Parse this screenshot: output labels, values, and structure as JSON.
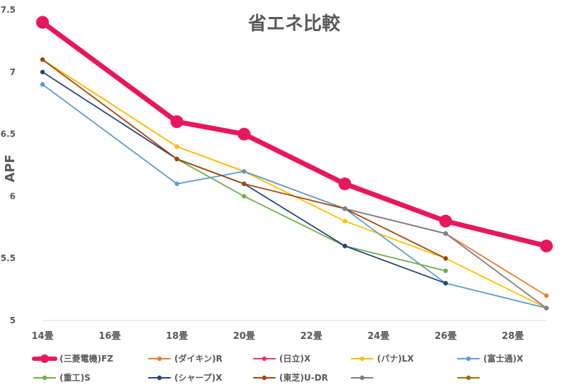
{
  "chart_data": {
    "type": "line",
    "title": "省エネ比較",
    "ylabel": "APF",
    "xlabel": "",
    "x_ticks": [
      "14畳",
      "16畳",
      "18畳",
      "20畳",
      "22畳",
      "24畳",
      "26畳",
      "28畳"
    ],
    "x_range": [
      14,
      29
    ],
    "y_range": [
      5,
      7.5
    ],
    "y_ticks": [
      "5",
      "5.5",
      "6",
      "6.5",
      "7",
      "7.5"
    ],
    "grid": false,
    "legend_position": "bottom",
    "series": [
      {
        "name": "(三菱電機)FZ",
        "color": "#E8175D",
        "emphasis": true,
        "points": [
          [
            14,
            7.4
          ],
          [
            18,
            6.6
          ],
          [
            20,
            6.5
          ],
          [
            23,
            6.1
          ],
          [
            26,
            5.8
          ],
          [
            29,
            5.6
          ]
        ]
      },
      {
        "name": "(ダイキン)R",
        "color": "#ED7D31",
        "points": [
          [
            14,
            7.1
          ],
          [
            18,
            6.4
          ],
          [
            20,
            6.2
          ],
          [
            23,
            5.9
          ],
          [
            26,
            5.7
          ],
          [
            29,
            5.2
          ]
        ]
      },
      {
        "name": "(日立)X",
        "color": "#E8356D",
        "points": [
          [
            23,
            5.9
          ],
          [
            26,
            5.7
          ]
        ]
      },
      {
        "name": "(パナ)LX",
        "color": "#FFC000",
        "points": [
          [
            14,
            7.1
          ],
          [
            18,
            6.4
          ],
          [
            20,
            6.2
          ],
          [
            23,
            5.8
          ],
          [
            26,
            5.5
          ],
          [
            29,
            5.1
          ]
        ]
      },
      {
        "name": "(富士通)X",
        "color": "#5B9BD5",
        "points": [
          [
            14,
            6.9
          ],
          [
            18,
            6.1
          ],
          [
            20,
            6.2
          ],
          [
            23,
            5.9
          ],
          [
            26,
            5.3
          ],
          [
            29,
            5.1
          ]
        ]
      },
      {
        "name": "(重工)S",
        "color": "#70AD47",
        "points": [
          [
            18,
            6.3
          ],
          [
            20,
            6.0
          ],
          [
            23,
            5.6
          ],
          [
            26,
            5.4
          ]
        ]
      },
      {
        "name": "(シャープ)X",
        "color": "#264478",
        "points": [
          [
            14,
            7.0
          ],
          [
            18,
            6.3
          ],
          [
            20,
            6.1
          ],
          [
            23,
            5.6
          ],
          [
            26,
            5.3
          ]
        ]
      },
      {
        "name": "(東芝)U-DR",
        "color": "#9E480E",
        "points": [
          [
            14,
            7.1
          ],
          [
            18,
            6.3
          ],
          [
            20,
            6.1
          ],
          [
            23,
            5.9
          ],
          [
            26,
            5.5
          ]
        ]
      },
      {
        "name": "",
        "color": "#7F7F7F",
        "legend_only": true,
        "points": [
          [
            23,
            5.9
          ],
          [
            26,
            5.7
          ],
          [
            29,
            5.1
          ]
        ]
      },
      {
        "name": "",
        "color": "#997300",
        "legend_only": true,
        "points": []
      }
    ]
  }
}
